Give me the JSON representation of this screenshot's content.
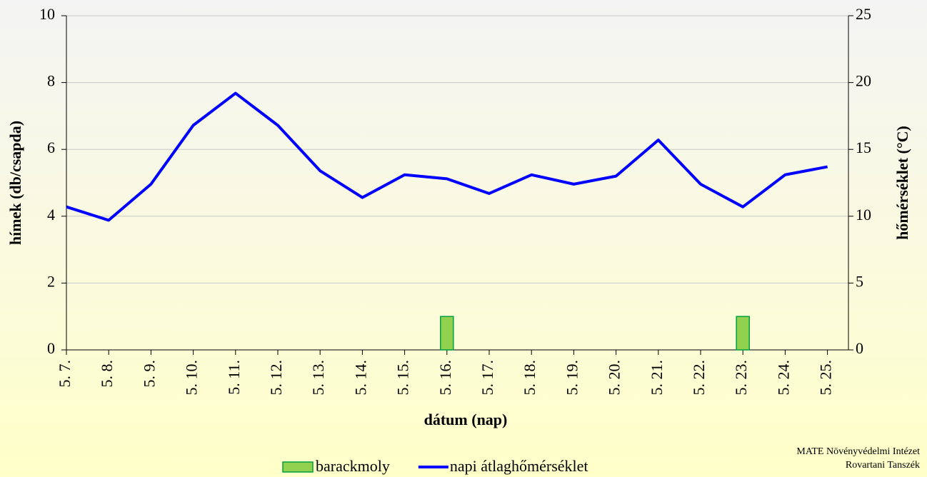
{
  "chart_data": {
    "type": "bar_line",
    "xlabel": "dátum (nap)",
    "ylabel": "hímek (db/csapda)",
    "y2label": "hőmérséklet (°C)",
    "categories": [
      "5. 7.",
      "5. 8.",
      "5. 9.",
      "5. 10.",
      "5. 11.",
      "5. 12.",
      "5. 13.",
      "5. 14.",
      "5. 15.",
      "5. 16.",
      "5. 17.",
      "5. 18.",
      "5. 19.",
      "5. 20.",
      "5. 21.",
      "5. 22.",
      "5. 23.",
      "5. 24.",
      "5. 25."
    ],
    "series": [
      {
        "name": "barackmoly",
        "type": "bar",
        "color": "#92d050",
        "values": [
          0,
          0,
          0,
          0,
          0,
          0,
          0,
          0,
          0,
          1,
          0,
          0,
          0,
          0,
          0,
          0,
          1,
          0,
          0
        ]
      },
      {
        "name": "napi átlaghőmérséklet",
        "type": "line",
        "axis": "y2",
        "color": "#0000ff",
        "values": [
          10.7,
          9.7,
          12.4,
          16.8,
          19.2,
          16.8,
          13.4,
          11.4,
          13.1,
          12.8,
          11.7,
          13.1,
          12.4,
          13.0,
          15.7,
          12.4,
          10.7,
          13.1,
          13.7
        ]
      }
    ],
    "ylim": [
      0,
      10
    ],
    "yticks": [
      0,
      2,
      4,
      6,
      8,
      10
    ],
    "y2lim": [
      0,
      25
    ],
    "y2ticks": [
      0,
      5,
      10,
      15,
      20,
      25
    ],
    "grid": true,
    "legend": "bottom",
    "source": [
      "MATE Növényvédelmi Intézet",
      "Rovartani Tanszék"
    ]
  }
}
